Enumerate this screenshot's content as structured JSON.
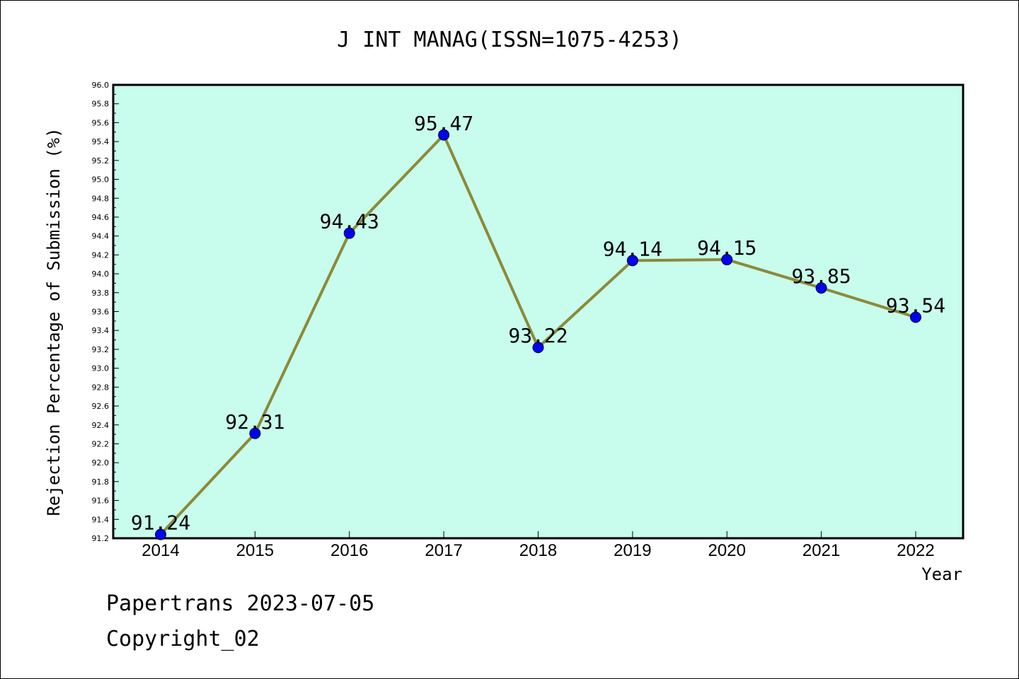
{
  "footer": {
    "line1": "Papertrans 2023-07-05",
    "line2": "Copyright_02"
  },
  "colors": {
    "plot_bg": "#c8fcec",
    "line": "#8b8a3a",
    "marker": "#0000ee",
    "axis": "#000000"
  },
  "chart_data": {
    "type": "line",
    "title": "J INT MANAG(ISSN=1075-4253)",
    "xlabel": "Year",
    "ylabel": "Rejection Percentage of Submission (%)",
    "x": [
      "2014",
      "2015",
      "2016",
      "2017",
      "2018",
      "2019",
      "2020",
      "2021",
      "2022"
    ],
    "series": [
      {
        "values": [
          91.24,
          92.31,
          94.43,
          95.47,
          93.22,
          94.14,
          94.15,
          93.85,
          93.54
        ],
        "labels": [
          "91.24",
          "92.31",
          "94.43",
          "95.47",
          "93.22",
          "94.14",
          "94.15",
          "93.85",
          "93.54"
        ]
      }
    ],
    "ylim": [
      91.2,
      96.0
    ],
    "yticks": [
      "91.2",
      "91.4",
      "91.6",
      "91.8",
      "92.0",
      "92.2",
      "92.4",
      "92.6",
      "92.8",
      "93.0",
      "93.2",
      "93.4",
      "93.6",
      "93.8",
      "94.0",
      "94.2",
      "94.4",
      "94.6",
      "94.8",
      "95.0",
      "95.2",
      "95.4",
      "95.6",
      "95.8",
      "96.0"
    ],
    "grid": false,
    "legend": "none"
  }
}
